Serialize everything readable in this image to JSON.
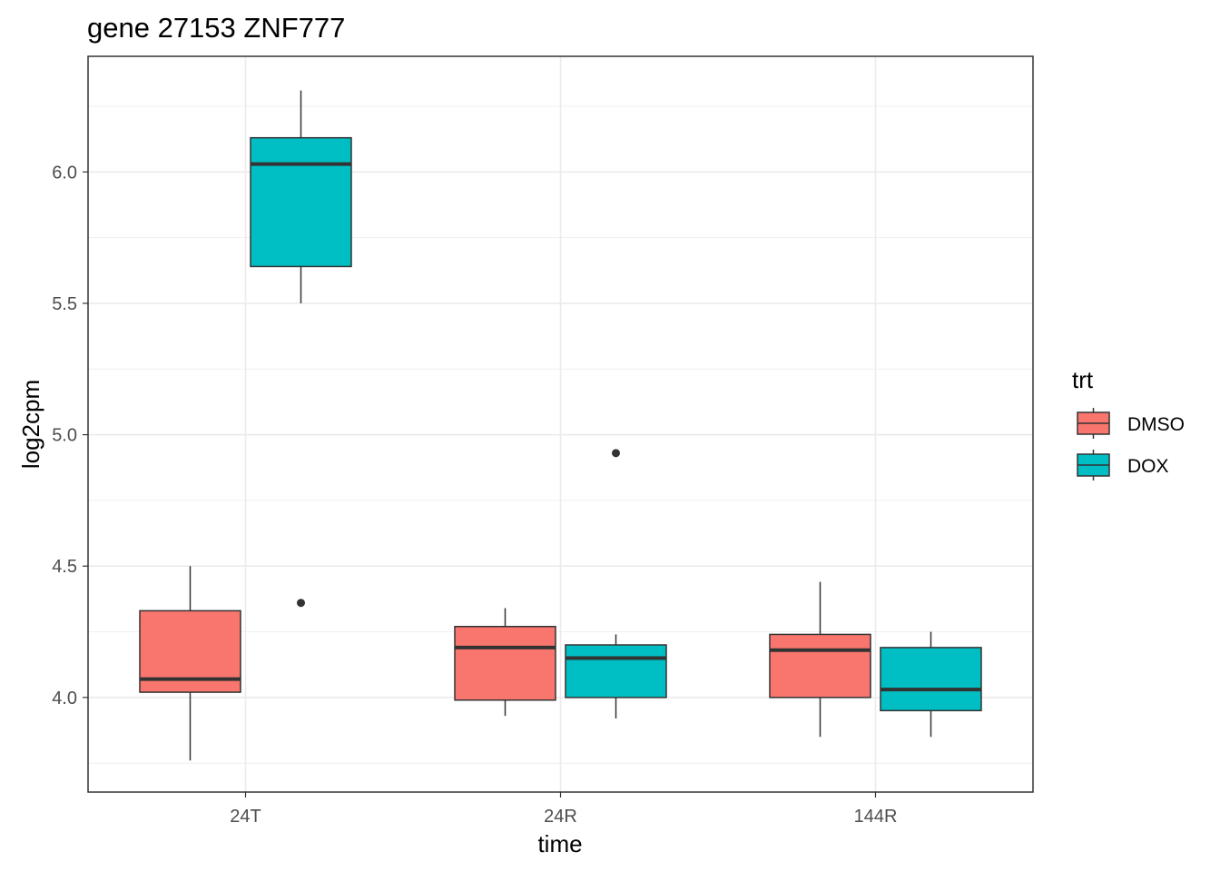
{
  "chart_data": {
    "type": "boxplot",
    "title": "gene 27153 ZNF777",
    "xlabel": "time",
    "ylabel": "log2cpm",
    "categories": [
      "24T",
      "24R",
      "144R"
    ],
    "yticks": [
      "4.0",
      "4.5",
      "5.0",
      "5.5",
      "6.0"
    ],
    "ylim": [
      3.64,
      6.44
    ],
    "grid": true,
    "legend": {
      "title": "trt",
      "position": "right",
      "entries": [
        {
          "name": "DMSO",
          "color": "#F8766D"
        },
        {
          "name": "DOX",
          "color": "#00BFC4"
        }
      ]
    },
    "series": [
      {
        "name": "DMSO",
        "color": "#F8766D",
        "boxes": [
          {
            "category": "24T",
            "whisker_low": 3.76,
            "q1": 4.02,
            "median": 4.07,
            "q3": 4.33,
            "whisker_high": 4.5,
            "outliers": []
          },
          {
            "category": "24R",
            "whisker_low": 3.93,
            "q1": 3.99,
            "median": 4.19,
            "q3": 4.27,
            "whisker_high": 4.34,
            "outliers": []
          },
          {
            "category": "144R",
            "whisker_low": 3.85,
            "q1": 4.0,
            "median": 4.18,
            "q3": 4.24,
            "whisker_high": 4.44,
            "outliers": []
          }
        ]
      },
      {
        "name": "DOX",
        "color": "#00BFC4",
        "boxes": [
          {
            "category": "24T",
            "whisker_low": 5.5,
            "q1": 5.64,
            "median": 6.03,
            "q3": 6.13,
            "whisker_high": 6.31,
            "outliers": [
              4.36
            ]
          },
          {
            "category": "24R",
            "whisker_low": 3.92,
            "q1": 4.0,
            "median": 4.15,
            "q3": 4.2,
            "whisker_high": 4.24,
            "outliers": [
              4.93
            ]
          },
          {
            "category": "144R",
            "whisker_low": 3.85,
            "q1": 3.95,
            "median": 4.03,
            "q3": 4.19,
            "whisker_high": 4.25,
            "outliers": []
          }
        ]
      }
    ]
  }
}
